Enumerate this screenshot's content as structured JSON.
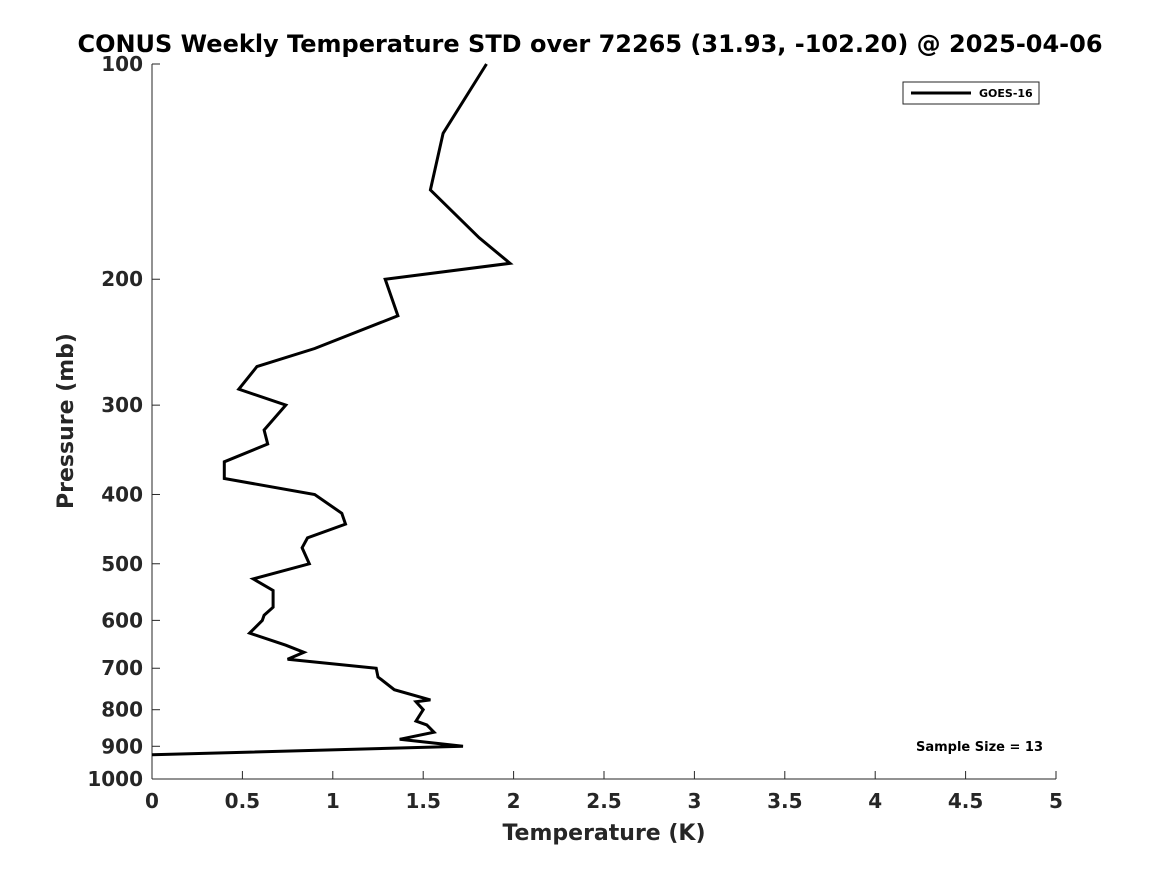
{
  "chart_data": {
    "type": "line",
    "title": "CONUS Weekly Temperature STD over 72265 (31.93, -102.20) @ 2025-04-06",
    "xlabel": "Temperature (K)",
    "ylabel": "Pressure (mb)",
    "xlim": [
      0,
      5
    ],
    "ylim": [
      100,
      1000
    ],
    "yscale": "log",
    "y_reversed": true,
    "x_ticks": [
      "0",
      "0.5",
      "1",
      "1.5",
      "2",
      "2.5",
      "3",
      "3.5",
      "4",
      "4.5",
      "5"
    ],
    "y_ticks": [
      "100",
      "200",
      "300",
      "400",
      "500",
      "600",
      "700",
      "800",
      "900",
      "1000"
    ],
    "legend": {
      "position": "top-right",
      "entries": [
        "GOES-16"
      ]
    },
    "annotation": "Sample Size = 13",
    "series": [
      {
        "name": "GOES-16",
        "color": "#000000",
        "points": [
          [
            1.85,
            100
          ],
          [
            1.61,
            125
          ],
          [
            1.54,
            150
          ],
          [
            1.81,
            175
          ],
          [
            1.98,
            190
          ],
          [
            1.29,
            200
          ],
          [
            1.36,
            225
          ],
          [
            0.9,
            250
          ],
          [
            0.58,
            265
          ],
          [
            0.48,
            285
          ],
          [
            0.74,
            300
          ],
          [
            0.62,
            325
          ],
          [
            0.64,
            340
          ],
          [
            0.4,
            360
          ],
          [
            0.4,
            380
          ],
          [
            0.9,
            400
          ],
          [
            1.05,
            425
          ],
          [
            1.07,
            440
          ],
          [
            0.86,
            460
          ],
          [
            0.83,
            475
          ],
          [
            0.87,
            500
          ],
          [
            0.56,
            525
          ],
          [
            0.67,
            545
          ],
          [
            0.67,
            575
          ],
          [
            0.62,
            590
          ],
          [
            0.61,
            600
          ],
          [
            0.54,
            625
          ],
          [
            0.74,
            650
          ],
          [
            0.84,
            665
          ],
          [
            0.75,
            680
          ],
          [
            1.24,
            700
          ],
          [
            1.25,
            720
          ],
          [
            1.34,
            750
          ],
          [
            1.54,
            775
          ],
          [
            1.46,
            780
          ],
          [
            1.48,
            790
          ],
          [
            1.5,
            800
          ],
          [
            1.46,
            830
          ],
          [
            1.52,
            840
          ],
          [
            1.56,
            860
          ],
          [
            1.37,
            880
          ],
          [
            1.72,
            900
          ],
          [
            0.0,
            925
          ]
        ]
      }
    ]
  }
}
